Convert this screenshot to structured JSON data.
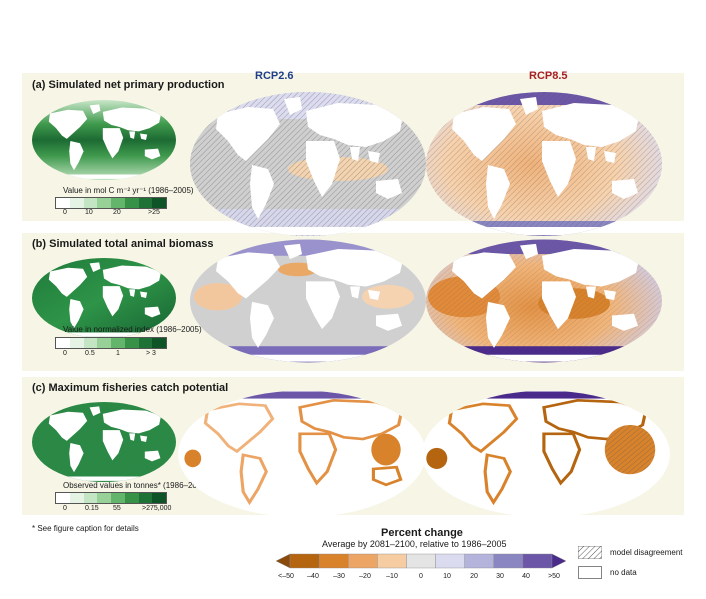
{
  "header": {
    "scenario_left": "RCP2.6",
    "scenario_right": "RCP8.5",
    "scenario_left_color": "#1f3f8a",
    "scenario_right_color": "#a51f24"
  },
  "panels": [
    {
      "title": "(a) Simulated net primary production",
      "legend_label": "Value in  mol C m⁻² yr⁻¹ (1986–2005)",
      "ticks": [
        "0",
        "10",
        "20",
        ">25"
      ]
    },
    {
      "title": "(b) Simulated total animal biomass",
      "legend_label": "Value in normalized index (1986–2005)",
      "ticks": [
        "0",
        "0.5",
        "1",
        "> 3"
      ]
    },
    {
      "title": "(c) Maximum fisheries catch potential",
      "legend_label": "Observed values in tonnes* (1986–2005)",
      "ticks": [
        "0",
        "0.15",
        "55",
        ">275,000"
      ]
    }
  ],
  "footnote": "* See figure caption for details",
  "colorbar": {
    "title": "Percent change",
    "subtitle": "Average by 2081–2100, relative to 1986–2005",
    "ticks": [
      "<–50",
      "–40",
      "–30",
      "–20",
      "–10",
      "0",
      "10",
      "20",
      "30",
      "40",
      ">50"
    ],
    "colors": [
      "#8a4a0c",
      "#b5640f",
      "#d8832c",
      "#eda566",
      "#f6cda3",
      "#e4e4e4",
      "#dadbef",
      "#b3b3db",
      "#8a86c2",
      "#6b56a8",
      "#4a2a8a"
    ],
    "legend_disagreement": "model disagreement",
    "legend_nodata": "no data"
  },
  "colors": {
    "panel_bg": "#f6f5e6",
    "land": "#ffffff",
    "ocean_gray": "#cfcfcf"
  }
}
